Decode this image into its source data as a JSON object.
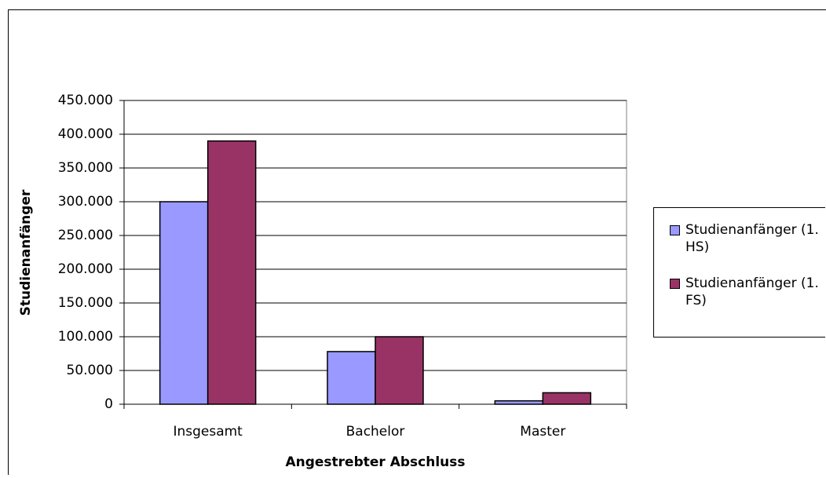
{
  "chart_data": {
    "type": "bar",
    "categories": [
      "Insgesamt",
      "Bachelor",
      "Master"
    ],
    "series": [
      {
        "name": "Studienanfänger (1. HS)",
        "color": "#9999ff",
        "values": [
          300000,
          78000,
          5000
        ]
      },
      {
        "name": "Studienanfänger (1. FS)",
        "color": "#993366",
        "values": [
          390000,
          100000,
          17000
        ]
      }
    ],
    "x_label": "Angestrebter Abschluss",
    "y_label": "Studienanfänger",
    "ylim": [
      0,
      450000
    ],
    "yticks": [
      0,
      {
        "value": 50000,
        "label": "50.000"
      },
      {
        "value": 100000,
        "label": "100.000"
      },
      {
        "value": 150000,
        "label": "150.000"
      },
      {
        "value": 200000,
        "label": "200.000"
      },
      {
        "value": 250000,
        "label": "250.000"
      },
      {
        "value": 300000,
        "label": "300.000"
      },
      {
        "value": 350000,
        "label": "350.000"
      },
      {
        "value": 400000,
        "label": "400.000"
      },
      {
        "value": 450000,
        "label": "450.000"
      }
    ],
    "grid": true,
    "legend": "right"
  }
}
